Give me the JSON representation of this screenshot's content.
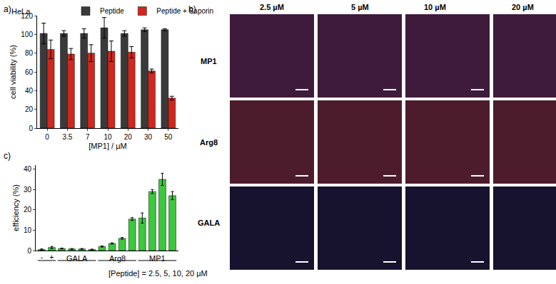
{
  "chart_data": [
    {
      "panel": "a)",
      "type": "bar",
      "annotation": "HeLa",
      "x_label": "[MP1] / µM",
      "y_label": "cell viability (%)",
      "categories": [
        "0",
        "3.5",
        "7",
        "10",
        "20",
        "30",
        "50"
      ],
      "series": [
        {
          "name": "Peptide",
          "color": "#3a3a3a",
          "values": [
            101,
            101,
            101,
            107,
            101,
            105,
            105
          ],
          "errors": [
            11,
            3,
            5,
            11,
            3,
            2,
            1
          ]
        },
        {
          "name": "Peptide + Saporin",
          "color": "#d0281e",
          "values": [
            84,
            79,
            80,
            82,
            81,
            61,
            32
          ],
          "errors": [
            10,
            6,
            9,
            11,
            6,
            2,
            2
          ]
        }
      ],
      "ylim": [
        0,
        120
      ],
      "yticks": [
        0,
        20,
        40,
        60,
        80,
        100,
        120
      ],
      "legend": "top"
    },
    {
      "panel": "c)",
      "type": "bar",
      "x_label": "[Peptide] = 2.5, 5, 10, 20 µM",
      "y_label": "efficiency (%)",
      "categories": [
        "-",
        "+",
        null,
        null,
        null,
        null,
        null,
        null,
        null,
        null,
        null,
        null,
        null,
        null
      ],
      "groups": [
        {
          "label": "GALA",
          "start": 2,
          "end": 5
        },
        {
          "label": "Arg8",
          "start": 6,
          "end": 9
        },
        {
          "label": "MP1",
          "start": 10,
          "end": 13
        }
      ],
      "values": [
        0.5,
        1.5,
        1.0,
        0.8,
        0.8,
        0.5,
        2.0,
        3.5,
        6.0,
        15.5,
        16,
        29,
        35,
        27
      ],
      "errors": [
        0.3,
        0.5,
        0.2,
        0.2,
        0.2,
        0.2,
        0.3,
        0.3,
        0.4,
        0.7,
        2.5,
        1,
        3,
        2
      ],
      "color": "#3cc83c",
      "ylim": [
        0,
        42
      ],
      "yticks": [
        0,
        10,
        20,
        30,
        40
      ]
    }
  ],
  "image_panel": {
    "panel": "b)",
    "columns": [
      "2.5 µM",
      "5 µM",
      "10 µM",
      "20 µM"
    ],
    "rows": [
      "MP1",
      "Arg8",
      "GALA"
    ]
  }
}
